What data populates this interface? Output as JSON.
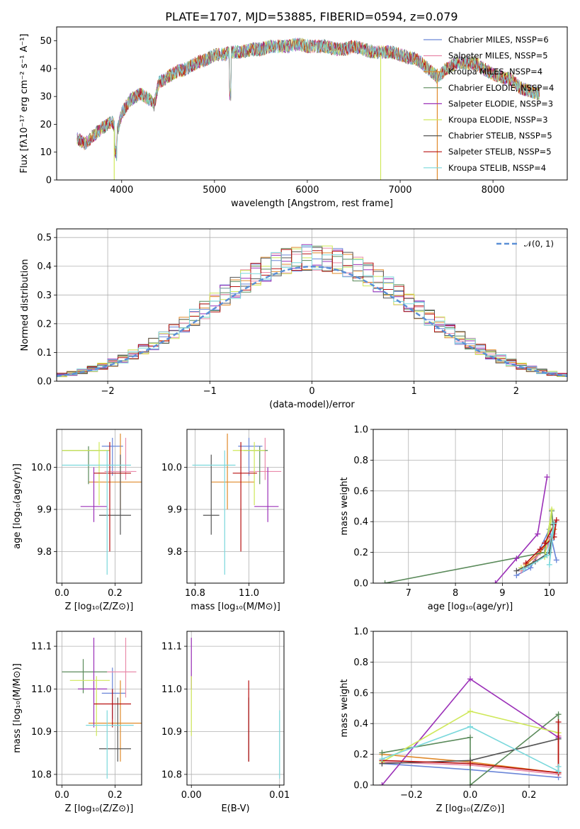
{
  "colors": [
    "#6a86d8",
    "#e98aaa",
    "#e08a2a",
    "#5a8a5a",
    "#9b30b8",
    "#cfe85a",
    "#555555",
    "#b81010",
    "#7ad8dc"
  ],
  "chart_data": [
    {
      "id": "spectrum",
      "type": "line",
      "title": "PLATE=1707, MJD=53885, FIBERID=0594, z=0.079",
      "xlabel": "wavelength [Angstrom, rest frame]",
      "ylabel": "Flux [fλ10⁻¹⁷ erg cm⁻² s⁻¹ A⁻¹]",
      "xlim": [
        3300,
        8800
      ],
      "ylim": [
        0,
        55
      ],
      "xticks": [
        4000,
        5000,
        6000,
        7000,
        8000
      ],
      "yticks": [
        0,
        10,
        20,
        30,
        40,
        50
      ],
      "grid": false,
      "legend_position": "right",
      "series": [
        {
          "name": "Chabrier MILES, NSSP=6"
        },
        {
          "name": "Salpeter MILES, NSSP=5"
        },
        {
          "name": "Kroupa MILES, NSSP=4"
        },
        {
          "name": "Chabrier ELODIE, NSSP=4"
        },
        {
          "name": "Salpeter ELODIE, NSSP=3"
        },
        {
          "name": "Kroupa ELODIE, NSSP=3"
        },
        {
          "name": "Chabrier STELIB, NSSP=5"
        },
        {
          "name": "Salpeter STELIB, NSSP=5"
        },
        {
          "name": "Kroupa STELIB, NSSP=4"
        }
      ],
      "observed_continuum": {
        "x": [
          3520,
          3600,
          3700,
          3800,
          3900,
          3950,
          4000,
          4100,
          4200,
          4300,
          4350,
          4400,
          4500,
          4600,
          4700,
          4800,
          4900,
          5000,
          5100,
          5200,
          5300,
          5400,
          5500,
          5600,
          5700,
          5800,
          5900,
          6000,
          6100,
          6200,
          6300,
          6400,
          6500,
          6600,
          6700,
          6800,
          6900,
          7000,
          7100,
          7200,
          7300,
          7400,
          7500,
          7600,
          7700,
          7800,
          7900,
          8000,
          8100,
          8200,
          8300,
          8400,
          8500
        ],
        "y": [
          15,
          13,
          16,
          19,
          21,
          17,
          24,
          29,
          31,
          29,
          27,
          35,
          37,
          39,
          40,
          42,
          43,
          45,
          45,
          46,
          46,
          47,
          47,
          48,
          48,
          48,
          49,
          48,
          48,
          48,
          47,
          47,
          48,
          47,
          46,
          46,
          46,
          45,
          44,
          43,
          40,
          37,
          40,
          42,
          42,
          42,
          40,
          38,
          37,
          36,
          33,
          32,
          31
        ]
      },
      "model_drops": [
        {
          "series": 5,
          "x": 3920,
          "from": 18
        },
        {
          "series": 5,
          "x": 6790,
          "from": 45
        },
        {
          "series": 2,
          "x": 7400,
          "from": 40
        }
      ]
    },
    {
      "id": "residuals",
      "type": "line",
      "xlabel": "(data-model)/error",
      "ylabel": "Normed distribution",
      "xlim": [
        -2.5,
        2.5
      ],
      "ylim": [
        0,
        0.53
      ],
      "xticks": [
        -2,
        -1,
        0,
        1,
        2
      ],
      "yticks": [
        0.0,
        0.1,
        0.2,
        0.3,
        0.4,
        0.5
      ],
      "grid": true,
      "legend_position": "top-right",
      "reference_curve": {
        "name": "𝒩(0, 1)",
        "mean": 0,
        "sigma": 1
      },
      "bin_edges": [
        -2.5,
        -2.4,
        -2.3,
        -2.2,
        -2.1,
        -2.0,
        -1.9,
        -1.8,
        -1.7,
        -1.6,
        -1.5,
        -1.4,
        -1.3,
        -1.2,
        -1.1,
        -1.0,
        -0.9,
        -0.8,
        -0.7,
        -0.6,
        -0.5,
        -0.4,
        -0.3,
        -0.2,
        -0.1,
        0.0,
        0.1,
        0.2,
        0.3,
        0.4,
        0.5,
        0.6,
        0.7,
        0.8,
        0.9,
        1.0,
        1.1,
        1.2,
        1.3,
        1.4,
        1.5,
        1.6,
        1.7,
        1.8,
        1.9,
        2.0,
        2.1,
        2.2,
        2.3,
        2.4,
        2.5
      ]
    },
    {
      "id": "z-age",
      "type": "scatter",
      "xlabel": "Z [log₁₀(Z/Z⊙)]",
      "ylabel": "age  [log₁₀(age/yr)]",
      "xlim": [
        -0.02,
        0.3
      ],
      "ylim": [
        9.725,
        10.09
      ],
      "xticks": [
        0.0,
        0.2
      ],
      "yticks": [
        9.8,
        9.9,
        10.0
      ],
      "grid": true,
      "points": [
        {
          "s": 0,
          "x": 0.19,
          "xe": [
            0.15,
            0.23
          ],
          "y": 10.05,
          "ye": [
            9.98,
            10.07
          ]
        },
        {
          "s": 1,
          "x": 0.24,
          "xe": [
            0.16,
            0.28
          ],
          "y": 9.99,
          "ye": [
            9.97,
            10.07
          ]
        },
        {
          "s": 2,
          "x": 0.22,
          "xe": [
            0.1,
            0.3
          ],
          "y": 9.965,
          "ye": [
            9.9,
            10.08
          ]
        },
        {
          "s": 3,
          "x": 0.1,
          "xe": [
            0.0,
            0.18
          ],
          "y": 10.04,
          "ye": [
            9.96,
            10.05
          ]
        },
        {
          "s": 4,
          "x": 0.12,
          "xe": [
            0.07,
            0.17
          ],
          "y": 9.907,
          "ye": [
            9.87,
            10.0
          ]
        },
        {
          "s": 5,
          "x": 0.14,
          "xe": [
            0.0,
            0.18
          ],
          "y": 10.04,
          "ye": [
            9.91,
            10.06
          ]
        },
        {
          "s": 6,
          "x": 0.22,
          "xe": [
            0.14,
            0.26
          ],
          "y": 9.886,
          "ye": [
            9.84,
            10.03
          ]
        },
        {
          "s": 7,
          "x": 0.18,
          "xe": [
            0.12,
            0.26
          ],
          "y": 9.986,
          "ye": [
            9.8,
            10.06
          ]
        },
        {
          "s": 8,
          "x": 0.17,
          "xe": [
            0.0,
            0.26
          ],
          "y": 10.005,
          "ye": [
            9.745,
            10.04
          ]
        }
      ]
    },
    {
      "id": "mass-age",
      "type": "scatter",
      "xlabel": "mass [log₁₀(M/M⊙)]",
      "ylabel": "",
      "xlim": [
        10.77,
        11.13
      ],
      "ylim": [
        9.725,
        10.09
      ],
      "xticks": [
        10.8,
        11.0
      ],
      "yticks": [
        9.8,
        9.9,
        10.0
      ],
      "grid": true,
      "points": [
        {
          "s": 0,
          "x": 11.0,
          "xe": [
            10.96,
            11.05
          ],
          "y": 10.05,
          "ye": [
            9.98,
            10.07
          ]
        },
        {
          "s": 1,
          "x": 11.06,
          "xe": [
            11.0,
            11.12
          ],
          "y": 9.99,
          "ye": [
            9.97,
            10.07
          ]
        },
        {
          "s": 2,
          "x": 10.92,
          "xe": [
            10.86,
            11.02
          ],
          "y": 9.965,
          "ye": [
            9.9,
            10.08
          ]
        },
        {
          "s": 3,
          "x": 11.04,
          "xe": [
            10.98,
            11.07
          ],
          "y": 10.04,
          "ye": [
            9.96,
            10.05
          ]
        },
        {
          "s": 4,
          "x": 11.07,
          "xe": [
            11.02,
            11.11
          ],
          "y": 9.907,
          "ye": [
            9.87,
            10.0
          ]
        },
        {
          "s": 5,
          "x": 11.02,
          "xe": [
            10.94,
            11.06
          ],
          "y": 10.04,
          "ye": [
            9.91,
            10.06
          ]
        },
        {
          "s": 6,
          "x": 10.86,
          "xe": [
            10.83,
            10.89
          ],
          "y": 9.886,
          "ye": [
            9.84,
            10.03
          ]
        },
        {
          "s": 7,
          "x": 10.97,
          "xe": [
            10.94,
            11.03
          ],
          "y": 9.986,
          "ye": [
            9.8,
            10.06
          ]
        },
        {
          "s": 8,
          "x": 10.91,
          "xe": [
            10.79,
            10.95
          ],
          "y": 10.005,
          "ye": [
            9.745,
            10.04
          ]
        }
      ]
    },
    {
      "id": "age-weight",
      "type": "line",
      "xlabel": "age  [log₁₀(age/yr)]",
      "ylabel": "mass weight",
      "xlim": [
        6.25,
        10.38
      ],
      "ylim": [
        0,
        1
      ],
      "xticks": [
        7,
        8,
        9,
        10
      ],
      "yticks": [
        0.0,
        0.2,
        0.4,
        0.6,
        0.8,
        1.0
      ],
      "grid": true,
      "series": [
        {
          "s": 0,
          "x": [
            9.3,
            9.6,
            10.0,
            10.15,
            10.05,
            9.8
          ],
          "y": [
            0.05,
            0.1,
            0.35,
            0.15,
            0.28,
            0.2
          ]
        },
        {
          "s": 1,
          "x": [
            9.4,
            9.7,
            10.0,
            10.1,
            9.9
          ],
          "y": [
            0.08,
            0.15,
            0.3,
            0.32,
            0.2
          ]
        },
        {
          "s": 2,
          "x": [
            9.5,
            9.8,
            10.05,
            10.1
          ],
          "y": [
            0.12,
            0.2,
            0.3,
            0.35
          ]
        },
        {
          "s": 3,
          "x": [
            6.5,
            9.9,
            10.05,
            10.1
          ],
          "y": [
            0.0,
            0.2,
            0.47,
            0.3
          ]
        },
        {
          "s": 4,
          "x": [
            8.85,
            9.3,
            9.75,
            9.95
          ],
          "y": [
            0.0,
            0.16,
            0.32,
            0.69
          ]
        },
        {
          "s": 5,
          "x": [
            9.4,
            9.9,
            10.05,
            10.02
          ],
          "y": [
            0.1,
            0.17,
            0.48,
            0.35
          ]
        },
        {
          "s": 6,
          "x": [
            9.3,
            9.7,
            10.0,
            10.05,
            10.08
          ],
          "y": [
            0.08,
            0.14,
            0.2,
            0.3,
            0.38
          ]
        },
        {
          "s": 7,
          "x": [
            9.5,
            9.8,
            10.1,
            10.15,
            9.9
          ],
          "y": [
            0.13,
            0.22,
            0.3,
            0.41,
            0.26
          ]
        },
        {
          "s": 8,
          "x": [
            9.45,
            9.95,
            10.1,
            10.0
          ],
          "y": [
            0.09,
            0.18,
            0.39,
            0.12
          ]
        }
      ]
    },
    {
      "id": "z-mass",
      "type": "scatter",
      "xlabel": "Z [log₁₀(Z/Z⊙)]",
      "ylabel": "mass [log₁₀(M/M⊙)]",
      "xlim": [
        -0.02,
        0.3
      ],
      "ylim": [
        10.775,
        11.135
      ],
      "xticks": [
        0.0,
        0.2
      ],
      "yticks": [
        10.8,
        10.9,
        11.0,
        11.1
      ],
      "grid": true,
      "points": [
        {
          "s": 0,
          "x": 0.19,
          "xe": [
            0.15,
            0.24
          ],
          "y": 10.99,
          "ye": [
            10.93,
            11.05
          ]
        },
        {
          "s": 1,
          "x": 0.24,
          "xe": [
            0.17,
            0.28
          ],
          "y": 11.04,
          "ye": [
            10.98,
            11.12
          ]
        },
        {
          "s": 2,
          "x": 0.22,
          "xe": [
            0.1,
            0.3
          ],
          "y": 10.92,
          "ye": [
            10.83,
            11.02
          ]
        },
        {
          "s": 3,
          "x": 0.08,
          "xe": [
            0.0,
            0.17
          ],
          "y": 11.04,
          "ye": [
            10.99,
            11.07
          ]
        },
        {
          "s": 4,
          "x": 0.12,
          "xe": [
            0.06,
            0.17
          ],
          "y": 11.0,
          "ye": [
            10.91,
            11.12
          ]
        },
        {
          "s": 5,
          "x": 0.13,
          "xe": [
            0.03,
            0.18
          ],
          "y": 11.02,
          "ye": [
            10.89,
            11.03
          ]
        },
        {
          "s": 6,
          "x": 0.21,
          "xe": [
            0.14,
            0.26
          ],
          "y": 10.86,
          "ye": [
            10.83,
            10.98
          ]
        },
        {
          "s": 7,
          "x": 0.19,
          "xe": [
            0.12,
            0.26
          ],
          "y": 10.965,
          "ye": [
            10.91,
            11.0
          ]
        },
        {
          "s": 8,
          "x": 0.17,
          "xe": [
            0.09,
            0.27
          ],
          "y": 10.915,
          "ye": [
            10.79,
            10.95
          ]
        }
      ]
    },
    {
      "id": "ebv-mass",
      "type": "scatter",
      "xlabel": "E(B-V)",
      "ylabel": "",
      "xlim": [
        -0.0005,
        0.0105
      ],
      "ylim": [
        10.775,
        11.135
      ],
      "xticks": [
        0.0,
        0.01
      ],
      "xticklabels": [
        "0.00",
        "0.01"
      ],
      "yticks": [
        10.8,
        10.9,
        11.0,
        11.1
      ],
      "grid": true,
      "points": [
        {
          "s": 4,
          "x": 0.0,
          "y": 11.06,
          "ye": [
            11.0,
            11.12
          ]
        },
        {
          "s": 5,
          "x": 0.0,
          "y": 10.96,
          "ye": [
            10.89,
            11.03
          ]
        },
        {
          "s": 6,
          "x": 0.0065,
          "y": 10.86,
          "ye": [
            10.83,
            10.98
          ]
        },
        {
          "s": 7,
          "x": 0.0065,
          "y": 10.94,
          "ye": [
            10.83,
            11.02
          ]
        },
        {
          "s": 8,
          "x": 0.01,
          "y": 10.87,
          "ye": [
            10.79,
            10.95
          ]
        }
      ]
    },
    {
      "id": "z-weight",
      "type": "line",
      "xlabel": "Z [log₁₀(Z/Z⊙)]",
      "ylabel": "mass weight",
      "xlim": [
        -0.33,
        0.33
      ],
      "ylim": [
        0,
        1
      ],
      "xticks": [
        -0.2,
        0.0,
        0.2
      ],
      "xticklabels": [
        "−0.2",
        "0.0",
        "0.2"
      ],
      "yticks": [
        0.0,
        0.2,
        0.4,
        0.6,
        0.8,
        1.0
      ],
      "grid": true,
      "series": [
        {
          "s": 0,
          "x": [
            -0.3,
            0.0,
            0.3,
            0.3
          ],
          "y": [
            0.14,
            0.1,
            0.05,
            0.3
          ]
        },
        {
          "s": 1,
          "x": [
            -0.3,
            0.0,
            0.3,
            0.3
          ],
          "y": [
            0.15,
            0.13,
            0.07,
            0.32
          ]
        },
        {
          "s": 2,
          "x": [
            -0.3,
            0.0,
            0.3,
            0.3
          ],
          "y": [
            0.2,
            0.15,
            0.08,
            0.34
          ]
        },
        {
          "s": 3,
          "x": [
            -0.3,
            0.0,
            0.0,
            0.3,
            0.3
          ],
          "y": [
            0.21,
            0.31,
            0.0,
            0.46,
            0.3
          ]
        },
        {
          "s": 4,
          "x": [
            -0.3,
            0.0,
            0.3
          ],
          "y": [
            0.0,
            0.69,
            0.31
          ]
        },
        {
          "s": 5,
          "x": [
            -0.3,
            0.0,
            0.3
          ],
          "y": [
            0.15,
            0.48,
            0.34
          ]
        },
        {
          "s": 6,
          "x": [
            -0.3,
            0.0,
            0.3
          ],
          "y": [
            0.14,
            0.16,
            0.3
          ]
        },
        {
          "s": 7,
          "x": [
            -0.3,
            0.0,
            0.3,
            0.3
          ],
          "y": [
            0.16,
            0.14,
            0.08,
            0.41
          ]
        },
        {
          "s": 8,
          "x": [
            -0.3,
            0.0,
            0.3,
            0.3
          ],
          "y": [
            0.17,
            0.38,
            0.09,
            0.12
          ]
        }
      ]
    }
  ]
}
